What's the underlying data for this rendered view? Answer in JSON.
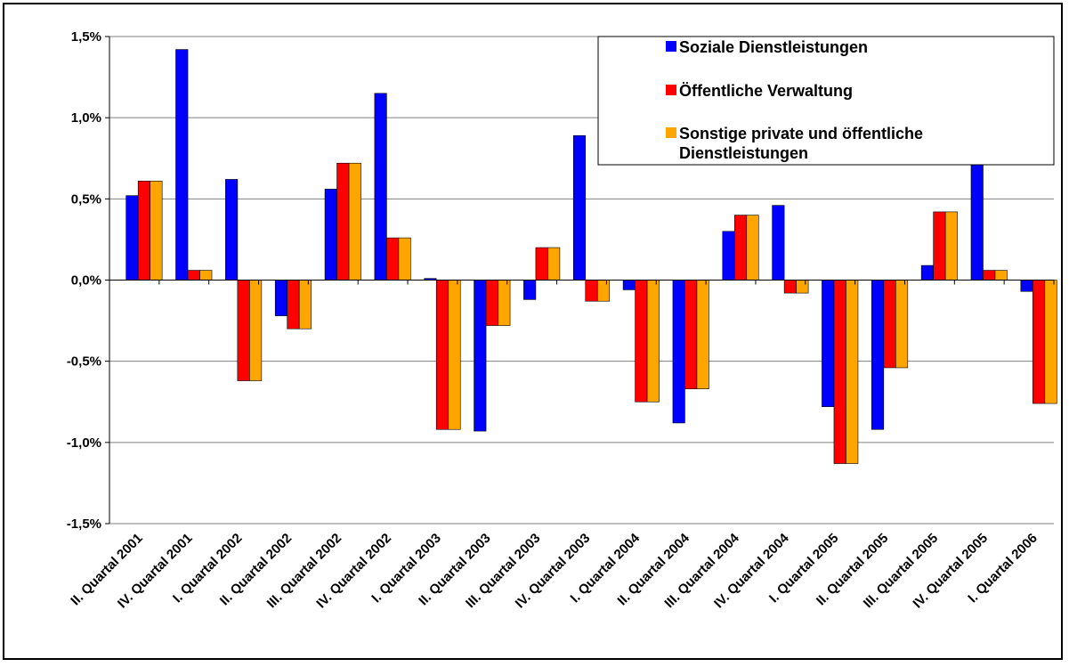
{
  "chart_data": {
    "type": "bar",
    "title": "",
    "xlabel": "",
    "ylabel": "",
    "ylim": [
      -1.5,
      1.5
    ],
    "yticks": [
      "1,5%",
      "1,0%",
      "0,5%",
      "0,0%",
      "-0,5%",
      "-1,0%",
      "-1,5%"
    ],
    "ytick_values": [
      1.5,
      1.0,
      0.5,
      0.0,
      -0.5,
      -1.0,
      -1.5
    ],
    "grid": true,
    "legend_position": "top-right",
    "categories": [
      "II. Quartal 2001",
      "IV. Quartal 2001",
      "I. Quartal 2002",
      "II. Quartal 2002",
      "III. Quartal 2002",
      "IV. Quartal 2002",
      "I. Quartal 2003",
      "II. Quartal 2003",
      "III. Quartal 2003",
      "IV. Quartal 2003",
      "I. Quartal 2004",
      "II. Quartal 2004",
      "III. Quartal 2004",
      "IV. Quartal 2004",
      "I. Quartal 2005",
      "II. Quartal 2005",
      "III. Quartal 2005",
      "IV. Quartal 2005",
      "I. Quartal 2006"
    ],
    "series": [
      {
        "name": "Soziale Dienstleistungen",
        "color": "#0000ff",
        "values": [
          0.52,
          1.42,
          0.62,
          -0.22,
          0.56,
          1.15,
          0.01,
          -0.93,
          -0.12,
          0.89,
          -0.06,
          -0.88,
          0.3,
          0.46,
          -0.78,
          -0.92,
          0.09,
          0.71,
          -0.07
        ]
      },
      {
        "name": "Öffentliche Verwaltung",
        "color": "#ff0000",
        "values": [
          0.61,
          0.06,
          -0.62,
          -0.3,
          0.72,
          0.26,
          -0.92,
          -0.28,
          0.2,
          -0.13,
          -0.75,
          -0.67,
          0.4,
          -0.08,
          -1.13,
          -0.54,
          0.42,
          0.06,
          -0.76
        ]
      },
      {
        "name": "Sonstige private und öffentliche Dienstleistungen",
        "legend_lines": [
          "Sonstige private und öffentliche",
          "Dienstleistungen"
        ],
        "color": "#ffa500",
        "values": [
          0.61,
          0.06,
          -0.62,
          -0.3,
          0.72,
          0.26,
          -0.92,
          -0.28,
          0.2,
          -0.13,
          -0.75,
          -0.67,
          0.4,
          -0.08,
          -1.13,
          -0.54,
          0.42,
          0.06,
          -0.76
        ]
      }
    ]
  }
}
